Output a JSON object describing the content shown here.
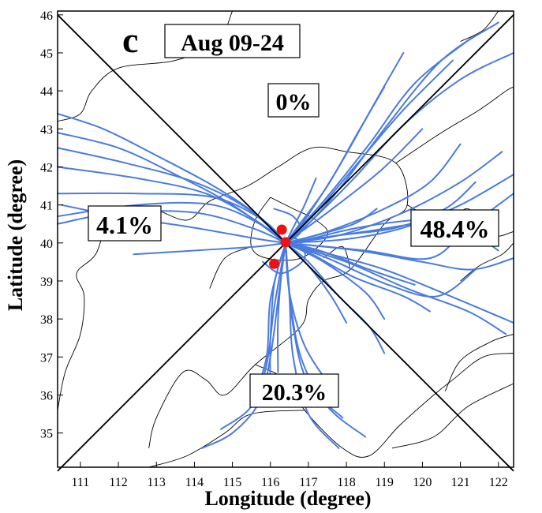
{
  "chart_data": {
    "type": "line",
    "panel_label": "c",
    "period_label": "Aug 09-24",
    "xlabel": "Longitude (degree)",
    "ylabel": "Latitude (degree)",
    "xlim": [
      110.4,
      122.4
    ],
    "ylim": [
      34.1,
      46.1
    ],
    "xticks": [
      "111",
      "112",
      "113",
      "114",
      "115",
      "116",
      "117",
      "118",
      "119",
      "120",
      "121",
      "122"
    ],
    "yticks": [
      "35",
      "36",
      "37",
      "38",
      "39",
      "40",
      "41",
      "42",
      "43",
      "44",
      "45",
      "46"
    ],
    "center": [
      116.4,
      40.0
    ],
    "sectors": [
      {
        "name": "north",
        "percent": "0%"
      },
      {
        "name": "west",
        "percent": "4.1%"
      },
      {
        "name": "east",
        "percent": "48.4%"
      },
      {
        "name": "south",
        "percent": "20.3%"
      }
    ],
    "sites": [
      [
        116.3,
        40.35
      ],
      [
        116.4,
        40.02
      ],
      [
        116.1,
        39.45
      ]
    ],
    "colors": {
      "trajectory": "#4a7be0",
      "site": "#ee1111",
      "line": "#000000",
      "boundary": "#000000"
    },
    "trajectories": [
      [
        [
          110.4,
          43.4
        ],
        [
          111.6,
          43.0
        ],
        [
          113.0,
          42.3
        ],
        [
          114.5,
          41.5
        ],
        [
          115.7,
          40.7
        ],
        [
          116.4,
          40.0
        ]
      ],
      [
        [
          110.4,
          42.9
        ],
        [
          112.0,
          42.5
        ],
        [
          113.5,
          41.8
        ],
        [
          115.0,
          41.0
        ],
        [
          116.4,
          40.0
        ]
      ],
      [
        [
          110.4,
          42.5
        ],
        [
          112.2,
          42.1
        ],
        [
          114.0,
          41.6
        ],
        [
          115.4,
          40.9
        ],
        [
          116.4,
          40.0
        ]
      ],
      [
        [
          110.4,
          42.0
        ],
        [
          112.5,
          41.7
        ],
        [
          114.3,
          41.3
        ],
        [
          115.6,
          40.6
        ],
        [
          116.4,
          40.0
        ]
      ],
      [
        [
          110.4,
          41.3
        ],
        [
          112.5,
          41.3
        ],
        [
          114.5,
          41.2
        ],
        [
          115.8,
          40.6
        ],
        [
          116.4,
          40.0
        ]
      ],
      [
        [
          110.4,
          40.7
        ],
        [
          112.5,
          41.0
        ],
        [
          114.5,
          41.0
        ],
        [
          115.9,
          40.4
        ],
        [
          116.4,
          40.0
        ]
      ],
      [
        [
          110.4,
          40.5
        ],
        [
          112.0,
          40.8
        ],
        [
          114.0,
          40.8
        ],
        [
          115.5,
          40.4
        ],
        [
          116.4,
          40.0
        ]
      ],
      [
        [
          112.4,
          39.7
        ],
        [
          114.0,
          39.8
        ],
        [
          115.6,
          39.9
        ],
        [
          116.4,
          40.0
        ]
      ],
      [
        [
          110.5,
          41.0
        ],
        [
          112.0,
          40.7
        ],
        [
          114.0,
          40.4
        ],
        [
          115.7,
          40.1
        ],
        [
          116.4,
          40.0
        ]
      ],
      [
        [
          114.2,
          34.6
        ],
        [
          115.0,
          35.0
        ],
        [
          115.7,
          35.8
        ],
        [
          116.0,
          37.0
        ],
        [
          116.2,
          38.5
        ],
        [
          116.4,
          40.0
        ]
      ],
      [
        [
          114.7,
          35.1
        ],
        [
          115.5,
          35.7
        ],
        [
          115.9,
          36.8
        ],
        [
          116.1,
          38.3
        ],
        [
          116.4,
          40.0
        ]
      ],
      [
        [
          115.5,
          35.7
        ],
        [
          115.9,
          37.0
        ],
        [
          116.0,
          38.5
        ],
        [
          116.4,
          40.0
        ]
      ],
      [
        [
          116.0,
          36.2
        ],
        [
          116.0,
          37.4
        ],
        [
          116.1,
          38.9
        ],
        [
          116.4,
          40.0
        ]
      ],
      [
        [
          118.5,
          34.9
        ],
        [
          117.5,
          35.7
        ],
        [
          116.8,
          37.0
        ],
        [
          116.5,
          38.7
        ],
        [
          116.4,
          40.0
        ]
      ],
      [
        [
          117.9,
          35.4
        ],
        [
          117.0,
          36.3
        ],
        [
          116.6,
          37.8
        ],
        [
          116.4,
          40.0
        ]
      ],
      [
        [
          117.8,
          34.6
        ],
        [
          117.0,
          35.5
        ],
        [
          116.6,
          37.0
        ],
        [
          116.5,
          38.6
        ],
        [
          116.4,
          40.0
        ]
      ],
      [
        [
          117.6,
          36.2
        ],
        [
          116.9,
          37.3
        ],
        [
          116.5,
          38.7
        ],
        [
          116.4,
          40.0
        ]
      ],
      [
        [
          116.2,
          36.6
        ],
        [
          116.2,
          38.0
        ],
        [
          116.3,
          39.3
        ],
        [
          116.4,
          40.0
        ]
      ],
      [
        [
          122.4,
          45.0
        ],
        [
          121.0,
          44.3
        ],
        [
          119.5,
          43.1
        ],
        [
          118.2,
          41.7
        ],
        [
          117.1,
          40.6
        ],
        [
          116.4,
          40.0
        ]
      ],
      [
        [
          122.0,
          45.8
        ],
        [
          120.5,
          44.8
        ],
        [
          119.0,
          43.0
        ],
        [
          117.8,
          41.4
        ],
        [
          116.9,
          40.4
        ],
        [
          116.4,
          40.0
        ]
      ],
      [
        [
          121.3,
          45.4
        ],
        [
          119.8,
          44.2
        ],
        [
          118.6,
          42.6
        ],
        [
          117.4,
          41.1
        ],
        [
          116.4,
          40.0
        ]
      ],
      [
        [
          120.8,
          44.8
        ],
        [
          119.5,
          43.5
        ],
        [
          118.3,
          42.1
        ],
        [
          117.2,
          40.8
        ],
        [
          116.4,
          40.0
        ]
      ],
      [
        [
          119.5,
          45.0
        ],
        [
          118.7,
          43.6
        ],
        [
          117.8,
          42.0
        ],
        [
          116.9,
          40.6
        ],
        [
          116.4,
          40.0
        ]
      ],
      [
        [
          119.0,
          44.1
        ],
        [
          118.3,
          42.9
        ],
        [
          117.5,
          41.5
        ],
        [
          116.7,
          40.4
        ],
        [
          116.4,
          40.0
        ]
      ],
      [
        [
          120.0,
          43.0
        ],
        [
          118.9,
          41.9
        ],
        [
          117.5,
          40.8
        ],
        [
          116.4,
          40.0
        ]
      ],
      [
        [
          122.4,
          41.8
        ],
        [
          121.0,
          41.0
        ],
        [
          119.5,
          40.4
        ],
        [
          118.0,
          40.1
        ],
        [
          116.4,
          40.0
        ]
      ],
      [
        [
          122.4,
          41.3
        ],
        [
          121.2,
          40.4
        ],
        [
          120.2,
          39.6
        ],
        [
          118.5,
          39.8
        ],
        [
          116.4,
          40.0
        ]
      ],
      [
        [
          121.4,
          41.6
        ],
        [
          120.6,
          40.9
        ],
        [
          119.3,
          40.4
        ],
        [
          117.8,
          40.2
        ],
        [
          116.4,
          40.0
        ]
      ],
      [
        [
          122.1,
          42.4
        ],
        [
          121.0,
          41.6
        ],
        [
          119.5,
          40.8
        ],
        [
          117.8,
          40.2
        ],
        [
          116.4,
          40.0
        ]
      ],
      [
        [
          122.4,
          39.6
        ],
        [
          121.3,
          39.3
        ],
        [
          120.0,
          39.5
        ],
        [
          118.3,
          39.8
        ],
        [
          116.4,
          40.0
        ]
      ],
      [
        [
          122.4,
          37.9
        ],
        [
          120.5,
          38.7
        ],
        [
          119.0,
          39.3
        ],
        [
          117.6,
          39.7
        ],
        [
          116.4,
          40.0
        ]
      ],
      [
        [
          121.4,
          39.3
        ],
        [
          120.4,
          38.6
        ],
        [
          119.1,
          38.9
        ],
        [
          117.5,
          39.6
        ],
        [
          116.4,
          40.0
        ]
      ],
      [
        [
          121.0,
          42.6
        ],
        [
          120.2,
          41.6
        ],
        [
          119.0,
          40.9
        ],
        [
          117.5,
          40.3
        ],
        [
          116.4,
          40.0
        ]
      ],
      [
        [
          122.0,
          39.8
        ],
        [
          121.2,
          40.3
        ],
        [
          120.0,
          40.5
        ],
        [
          118.5,
          40.3
        ],
        [
          116.4,
          40.0
        ]
      ],
      [
        [
          122.2,
          37.6
        ],
        [
          121.2,
          38.2
        ],
        [
          119.6,
          38.8
        ],
        [
          118.0,
          39.5
        ],
        [
          116.4,
          40.0
        ]
      ],
      [
        [
          119.0,
          38.0
        ],
        [
          118.5,
          38.7
        ],
        [
          117.4,
          39.5
        ],
        [
          116.4,
          40.0
        ]
      ],
      [
        [
          120.2,
          38.2
        ],
        [
          119.5,
          38.6
        ],
        [
          118.2,
          39.1
        ],
        [
          117.1,
          39.7
        ],
        [
          116.4,
          40.0
        ]
      ],
      [
        [
          118.0,
          37.9
        ],
        [
          117.6,
          38.6
        ],
        [
          117.0,
          39.4
        ],
        [
          116.4,
          40.0
        ]
      ],
      [
        [
          119.0,
          37.1
        ],
        [
          118.6,
          37.8
        ],
        [
          117.8,
          38.6
        ],
        [
          117.0,
          39.5
        ],
        [
          116.4,
          40.0
        ]
      ],
      [
        [
          119.8,
          38.9
        ],
        [
          118.6,
          39.3
        ],
        [
          117.3,
          39.8
        ],
        [
          116.4,
          40.0
        ]
      ],
      [
        [
          121.0,
          40.6
        ],
        [
          119.8,
          40.6
        ],
        [
          118.3,
          40.4
        ],
        [
          117.0,
          40.1
        ],
        [
          116.4,
          40.0
        ]
      ],
      [
        [
          117.2,
          41.7
        ],
        [
          116.9,
          41.0
        ],
        [
          116.6,
          40.4
        ],
        [
          116.4,
          40.0
        ]
      ],
      [
        [
          116.1,
          40.9
        ],
        [
          116.6,
          40.7
        ],
        [
          116.8,
          40.3
        ],
        [
          116.4,
          40.0
        ]
      ],
      [
        [
          115.8,
          39.5
        ],
        [
          116.3,
          39.2
        ],
        [
          116.9,
          39.6
        ],
        [
          116.7,
          40.1
        ],
        [
          116.4,
          40.0
        ]
      ],
      [
        [
          118.8,
          40.9
        ],
        [
          118.2,
          40.5
        ],
        [
          117.2,
          40.2
        ],
        [
          116.4,
          40.0
        ]
      ]
    ]
  }
}
